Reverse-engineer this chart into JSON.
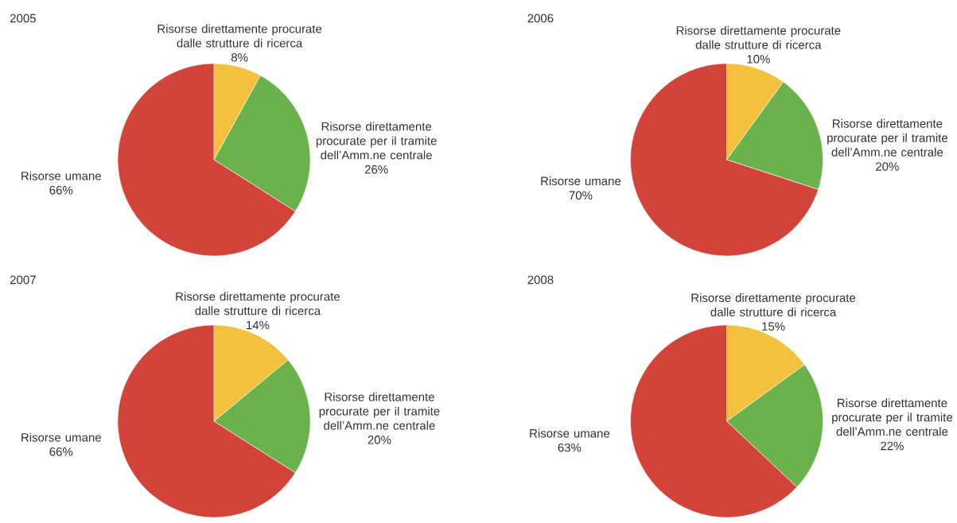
{
  "chart_data": [
    {
      "type": "pie",
      "title": "2005",
      "categories": [
        "Risorse direttamente procurate dalle strutture di ricerca",
        "Risorse direttamente procurate per il tramite dell’Amm.ne centrale",
        "Risorse umane"
      ],
      "values": [
        8,
        26,
        66
      ],
      "value_labels": [
        "8%",
        "26%",
        "66%"
      ],
      "colors": [
        "#f3c13c",
        "#6ab24c",
        "#d2443a"
      ]
    },
    {
      "type": "pie",
      "title": "2006",
      "categories": [
        "Risorse direttamente procurate dalle strutture di ricerca",
        "Risorse direttamente procurate per il tramite dell’Amm.ne centrale",
        "Risorse umane"
      ],
      "values": [
        10,
        20,
        70
      ],
      "value_labels": [
        "10%",
        "20%",
        "70%"
      ],
      "colors": [
        "#f3c13c",
        "#6ab24c",
        "#d2443a"
      ]
    },
    {
      "type": "pie",
      "title": "2007",
      "categories": [
        "Risorse direttamente procurate dalle strutture di ricerca",
        "Risorse direttamente procurate per il tramite dell’Amm.ne centrale",
        "Risorse umane"
      ],
      "values": [
        14,
        20,
        66
      ],
      "value_labels": [
        "14%",
        "20%",
        "66%"
      ],
      "colors": [
        "#f3c13c",
        "#6ab24c",
        "#d2443a"
      ]
    },
    {
      "type": "pie",
      "title": "2008",
      "categories": [
        "Risorse direttamente procurate dalle strutture di ricerca",
        "Risorse direttamente procurate per il tramite dell’Amm.ne centrale",
        "Risorse umane"
      ],
      "values": [
        15,
        22,
        63
      ],
      "value_labels": [
        "15%",
        "22%",
        "63%"
      ],
      "colors": [
        "#f3c13c",
        "#6ab24c",
        "#d2443a"
      ]
    }
  ]
}
